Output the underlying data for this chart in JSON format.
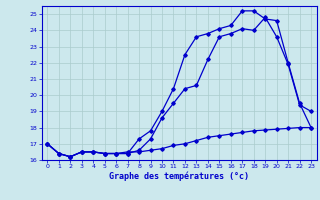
{
  "title": "Graphe des températures (°c)",
  "bg_color": "#cce8ed",
  "grid_color": "#aacccc",
  "line_color": "#0000cc",
  "xlim": [
    -0.5,
    23.5
  ],
  "ylim": [
    16.0,
    25.5
  ],
  "yticks": [
    16,
    17,
    18,
    19,
    20,
    21,
    22,
    23,
    24,
    25
  ],
  "xticks": [
    0,
    1,
    2,
    3,
    4,
    5,
    6,
    7,
    8,
    9,
    10,
    11,
    12,
    13,
    14,
    15,
    16,
    17,
    18,
    19,
    20,
    21,
    22,
    23
  ],
  "line1_x": [
    0,
    1,
    2,
    3,
    4,
    5,
    6,
    7,
    8,
    9,
    10,
    11,
    12,
    13,
    14,
    15,
    16,
    17,
    18,
    19,
    20,
    21,
    22,
    23
  ],
  "line1_y": [
    17.0,
    16.4,
    16.2,
    16.5,
    16.5,
    16.4,
    16.4,
    16.4,
    16.6,
    17.3,
    18.6,
    19.5,
    20.4,
    20.6,
    22.2,
    23.6,
    23.8,
    24.1,
    24.0,
    24.8,
    23.6,
    21.9,
    19.4,
    19.0
  ],
  "line2_x": [
    0,
    1,
    2,
    3,
    4,
    5,
    6,
    7,
    8,
    9,
    10,
    11,
    12,
    13,
    14,
    15,
    16,
    17,
    18,
    19,
    20,
    21,
    22,
    23
  ],
  "line2_y": [
    17.0,
    16.4,
    16.2,
    16.5,
    16.5,
    16.4,
    16.4,
    16.4,
    17.3,
    17.8,
    19.0,
    20.4,
    22.5,
    23.6,
    23.8,
    24.1,
    24.3,
    25.2,
    25.2,
    24.7,
    24.6,
    22.0,
    19.5,
    18.0
  ],
  "line3_x": [
    0,
    1,
    2,
    3,
    4,
    5,
    6,
    7,
    8,
    9,
    10,
    11,
    12,
    13,
    14,
    15,
    16,
    17,
    18,
    19,
    20,
    21,
    22,
    23
  ],
  "line3_y": [
    17.0,
    16.4,
    16.2,
    16.5,
    16.5,
    16.4,
    16.4,
    16.5,
    16.5,
    16.6,
    16.7,
    16.9,
    17.0,
    17.2,
    17.4,
    17.5,
    17.6,
    17.7,
    17.8,
    17.85,
    17.9,
    17.95,
    18.0,
    18.0
  ]
}
